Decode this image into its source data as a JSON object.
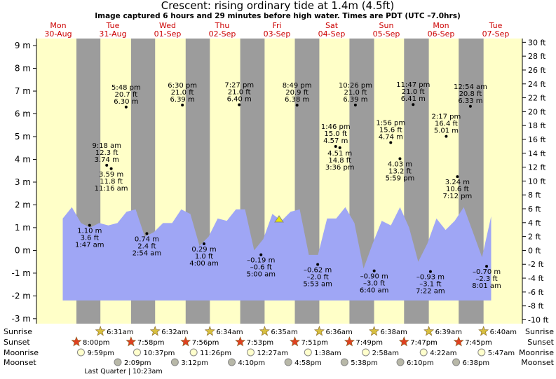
{
  "chart_data": {
    "type": "tide",
    "title": "Crescent: rising  ordinary tide at 1.4m (4.5ft)",
    "subtitle": "Image captured 6 hours and 29 minutes before high water. Times are PDT (UTC –7.0hrs)",
    "days": [
      {
        "weekday": "Mon",
        "date": "30-Aug"
      },
      {
        "weekday": "Tue",
        "date": "31-Aug"
      },
      {
        "weekday": "Wed",
        "date": "01-Sep"
      },
      {
        "weekday": "Thu",
        "date": "02-Sep"
      },
      {
        "weekday": "Fri",
        "date": "03-Sep"
      },
      {
        "weekday": "Sat",
        "date": "04-Sep"
      },
      {
        "weekday": "Sun",
        "date": "05-Sep"
      },
      {
        "weekday": "Mon",
        "date": "06-Sep"
      },
      {
        "weekday": "Tue",
        "date": "07-Sep"
      }
    ],
    "ylim": [
      -3.22,
      9.31
    ],
    "yticks": [
      {
        "value": -3,
        "label": "-3 m"
      },
      {
        "value": -2,
        "label": "-2 m"
      },
      {
        "value": -1,
        "label": "-1 m"
      },
      {
        "value": 0,
        "label": "0 m"
      },
      {
        "value": 1,
        "label": "1 m"
      },
      {
        "value": 2,
        "label": "2 m"
      },
      {
        "value": 3,
        "label": "3 m"
      },
      {
        "value": 4,
        "label": "4 m"
      },
      {
        "value": 5,
        "label": "5 m"
      },
      {
        "value": 6,
        "label": "6 m"
      },
      {
        "value": 7,
        "label": "7 m"
      },
      {
        "value": 8,
        "label": "8 m"
      },
      {
        "value": 9,
        "label": "9 m"
      }
    ],
    "y2lim": [
      -10.56,
      30.54
    ],
    "y2ticks": [
      {
        "value": -10,
        "label": "-10 ft"
      },
      {
        "value": -8,
        "label": "-8 ft"
      },
      {
        "value": -6,
        "label": "-6 ft"
      },
      {
        "value": -4,
        "label": "-4 ft"
      },
      {
        "value": -2,
        "label": "-2 ft"
      },
      {
        "value": 0,
        "label": "0 ft"
      },
      {
        "value": 2,
        "label": "2 ft"
      },
      {
        "value": 4,
        "label": "4 ft"
      },
      {
        "value": 6,
        "label": "6 ft"
      },
      {
        "value": 8,
        "label": "8 ft"
      },
      {
        "value": 10,
        "label": "10 ft"
      },
      {
        "value": 12,
        "label": "12 ft"
      },
      {
        "value": 14,
        "label": "14 ft"
      },
      {
        "value": 16,
        "label": "16 ft"
      },
      {
        "value": 18,
        "label": "18 ft"
      },
      {
        "value": 20,
        "label": "20 ft"
      },
      {
        "value": 22,
        "label": "22 ft"
      },
      {
        "value": 24,
        "label": "24 ft"
      },
      {
        "value": 26,
        "label": "26 ft"
      },
      {
        "value": 28,
        "label": "28 ft"
      },
      {
        "value": 30,
        "label": "30 ft"
      }
    ],
    "curve": {
      "color": "#9fa6f5",
      "x": [
        "30-Aug 14:00",
        "30-Aug 18:00",
        "30-Aug 22:00",
        "31-Aug 02:00",
        "31-Aug 06:00",
        "31-Aug 10:00",
        "31-Aug 14:00",
        "31-Aug 18:00",
        "31-Aug 22:00",
        "01-Sep 02:00",
        "01-Sep 06:00",
        "01-Sep 10:00",
        "01-Sep 14:00",
        "01-Sep 18:00",
        "01-Sep 22:00",
        "02-Sep 02:00",
        "02-Sep 06:00",
        "02-Sep 10:00",
        "02-Sep 14:00",
        "02-Sep 18:00",
        "02-Sep 22:00",
        "03-Sep 02:00",
        "03-Sep 06:00",
        "03-Sep 10:00",
        "03-Sep 14:00",
        "03-Sep 18:00",
        "03-Sep 22:00",
        "04-Sep 02:00",
        "04-Sep 06:00",
        "04-Sep 10:00",
        "04-Sep 14:00",
        "04-Sep 18:00",
        "04-Sep 22:00",
        "05-Sep 02:00",
        "05-Sep 06:00",
        "05-Sep 10:00",
        "05-Sep 14:00",
        "05-Sep 18:00",
        "05-Sep 22:00",
        "06-Sep 02:00",
        "06-Sep 06:00",
        "06-Sep 10:00",
        "06-Sep 14:00",
        "06-Sep 18:00",
        "06-Sep 22:00",
        "07-Sep 02:00",
        "07-Sep 06:00",
        "07-Sep 10:00"
      ],
      "values": [
        1.4,
        1.9,
        1.2,
        1.0,
        1.2,
        1.1,
        1.2,
        1.7,
        1.8,
        0.6,
        0.8,
        1.2,
        1.2,
        1.8,
        1.6,
        0.2,
        0.6,
        1.4,
        1.3,
        1.8,
        1.8,
        0.0,
        0.5,
        1.6,
        1.3,
        1.7,
        1.8,
        -0.2,
        -0.2,
        1.4,
        1.4,
        1.9,
        1.2,
        -0.8,
        0.3,
        1.3,
        1.1,
        1.9,
        1.0,
        -0.5,
        0.3,
        1.4,
        0.9,
        1.3,
        1.9,
        0.8,
        -0.3,
        1.5
      ]
    },
    "extremes": [
      {
        "date": "31-Aug",
        "time": "1:47 am",
        "value": 1.1,
        "value_label": "1.10 m",
        "ft": "3.6 ft"
      },
      {
        "date": "31-Aug",
        "time": "9:18 am",
        "value": 3.74,
        "value_label": "3.74 m",
        "ft": "12.3 ft"
      },
      {
        "date": "31-Aug",
        "time": "11:16 am",
        "value": 3.59,
        "value_label": "3.59 m",
        "ft": "11.8 ft"
      },
      {
        "date": "31-Aug",
        "time": "5:48 pm",
        "value": 6.3,
        "value_label": "6.30 m",
        "ft": "20.7 ft"
      },
      {
        "date": "01-Sep",
        "time": "2:54 am",
        "value": 0.74,
        "value_label": "0.74 m",
        "ft": "2.4 ft"
      },
      {
        "date": "01-Sep",
        "time": "6:30 pm",
        "value": 6.39,
        "value_label": "6.39 m",
        "ft": "21.0 ft"
      },
      {
        "date": "02-Sep",
        "time": "4:00 am",
        "value": 0.29,
        "value_label": "0.29 m",
        "ft": "1.0 ft"
      },
      {
        "date": "02-Sep",
        "time": "7:27 pm",
        "value": 6.4,
        "value_label": "6.40 m",
        "ft": "21.0 ft"
      },
      {
        "date": "03-Sep",
        "time": "5:00 am",
        "value": -0.19,
        "value_label": "–0.19 m",
        "ft": "–0.6 ft"
      },
      {
        "date": "03-Sep",
        "time": "8:49 pm",
        "value": 6.38,
        "value_label": "6.38 m",
        "ft": "20.9 ft"
      },
      {
        "date": "04-Sep",
        "time": "5:53 am",
        "value": -0.62,
        "value_label": "–0.62 m",
        "ft": "–2.0 ft"
      },
      {
        "date": "04-Sep",
        "time": "1:46 pm",
        "value": 4.57,
        "value_label": "4.57 m",
        "ft": "15.0 ft"
      },
      {
        "date": "04-Sep",
        "time": "3:36 pm",
        "value": 4.51,
        "value_label": "4.51 m",
        "ft": "14.8 ft"
      },
      {
        "date": "04-Sep",
        "time": "10:26 pm",
        "value": 6.39,
        "value_label": "6.39 m",
        "ft": "21.0 ft"
      },
      {
        "date": "05-Sep",
        "time": "6:40 am",
        "value": -0.9,
        "value_label": "–0.90 m",
        "ft": "–3.0 ft"
      },
      {
        "date": "05-Sep",
        "time": "1:56 pm",
        "value": 4.74,
        "value_label": "4.74 m",
        "ft": "15.6 ft"
      },
      {
        "date": "05-Sep",
        "time": "5:59 pm",
        "value": 4.03,
        "value_label": "4.03 m",
        "ft": "13.2 ft"
      },
      {
        "date": "05-Sep",
        "time": "11:47 pm",
        "value": 6.41,
        "value_label": "6.41 m",
        "ft": "21.0 ft"
      },
      {
        "date": "06-Sep",
        "time": "7:22 am",
        "value": -0.93,
        "value_label": "–0.93 m",
        "ft": "–3.1 ft"
      },
      {
        "date": "06-Sep",
        "time": "2:17 pm",
        "value": 5.01,
        "value_label": "5.01 m",
        "ft": "16.4 ft"
      },
      {
        "date": "06-Sep",
        "time": "7:12 pm",
        "value": 3.24,
        "value_label": "3.24 m",
        "ft": "10.6 ft"
      },
      {
        "date": "07-Sep",
        "time": "12:54 am",
        "value": 6.33,
        "value_label": "6.33 m",
        "ft": "20.8 ft"
      },
      {
        "date": "07-Sep",
        "time": "8:01 am",
        "value": -0.7,
        "value_label": "–0.70 m",
        "ft": "–2.3 ft"
      }
    ],
    "rows": [
      {
        "name": "Sunrise",
        "events": [
          {
            "date": "31-Aug",
            "time": "6:31am"
          },
          {
            "date": "01-Sep",
            "time": "6:32am"
          },
          {
            "date": "02-Sep",
            "time": "6:34am"
          },
          {
            "date": "03-Sep",
            "time": "6:35am"
          },
          {
            "date": "04-Sep",
            "time": "6:36am"
          },
          {
            "date": "05-Sep",
            "time": "6:38am"
          },
          {
            "date": "06-Sep",
            "time": "6:39am"
          },
          {
            "date": "07-Sep",
            "time": "6:40am"
          }
        ]
      },
      {
        "name": "Sunset",
        "events": [
          {
            "date": "30-Aug",
            "time": "8:00pm"
          },
          {
            "date": "31-Aug",
            "time": "7:58pm"
          },
          {
            "date": "01-Sep",
            "time": "7:56pm"
          },
          {
            "date": "02-Sep",
            "time": "7:53pm"
          },
          {
            "date": "03-Sep",
            "time": "7:51pm"
          },
          {
            "date": "04-Sep",
            "time": "7:49pm"
          },
          {
            "date": "05-Sep",
            "time": "7:47pm"
          },
          {
            "date": "06-Sep",
            "time": "7:45pm"
          }
        ]
      },
      {
        "name": "Moonrise",
        "events": [
          {
            "date": "30-Aug",
            "time": "9:59pm"
          },
          {
            "date": "31-Aug",
            "time": "10:37pm"
          },
          {
            "date": "01-Sep",
            "time": "11:26pm"
          },
          {
            "date": "03-Sep",
            "time": "12:27am"
          },
          {
            "date": "04-Sep",
            "time": "1:38am"
          },
          {
            "date": "05-Sep",
            "time": "2:58am"
          },
          {
            "date": "06-Sep",
            "time": "4:22am"
          },
          {
            "date": "07-Sep",
            "time": "5:47am"
          }
        ]
      },
      {
        "name": "Moonset",
        "events": [
          {
            "date": "31-Aug",
            "time": "2:09pm"
          },
          {
            "date": "01-Sep",
            "time": "3:12pm"
          },
          {
            "date": "02-Sep",
            "time": "4:10pm"
          },
          {
            "date": "03-Sep",
            "time": "4:58pm"
          },
          {
            "date": "04-Sep",
            "time": "5:38pm"
          },
          {
            "date": "05-Sep",
            "time": "6:10pm"
          },
          {
            "date": "06-Sep",
            "time": "6:38pm"
          }
        ]
      }
    ],
    "moon_phase": "Last Quarter | 10:23am"
  }
}
